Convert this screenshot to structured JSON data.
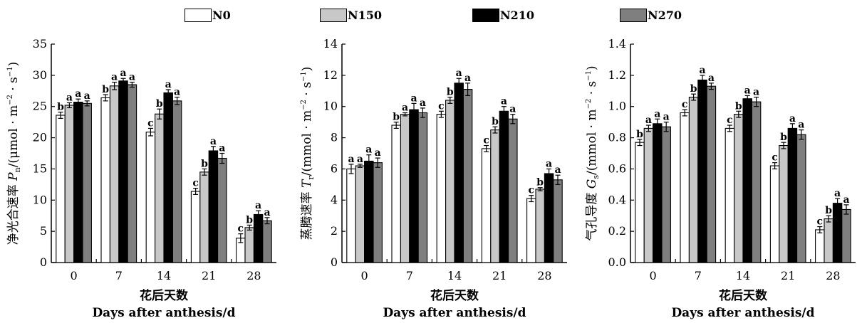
{
  "legend": [
    {
      "name": "N0",
      "color": "#ffffff"
    },
    {
      "name": "N150",
      "color": "#c8c8c8"
    },
    {
      "name": "N210",
      "color": "#000000"
    },
    {
      "name": "N270",
      "color": "#7f7f7f"
    }
  ],
  "chart_data": [
    {
      "type": "bar",
      "categories": [
        "0",
        "7",
        "14",
        "21",
        "28"
      ],
      "xlabel_cn": "花后天数",
      "xlabel_en": "Days after anthesis/d",
      "ylabel_cn": "净光合速率",
      "ylabel_var": "P",
      "ylabel_sub": "n",
      "ylabel_unit": "/(μmol · m",
      "ylabel_tail": " · s",
      "ylim": [
        0,
        35
      ],
      "yticks": [
        "0",
        "5",
        "10",
        "15",
        "20",
        "25",
        "30",
        "35"
      ],
      "series": [
        {
          "name": "N0",
          "values": [
            23.6,
            26.4,
            20.9,
            11.4,
            3.9
          ],
          "errors": [
            0.5,
            0.5,
            0.6,
            0.5,
            0.7
          ],
          "letters": [
            "b",
            "b",
            "c",
            "c",
            "c"
          ]
        },
        {
          "name": "N150",
          "values": [
            25.2,
            28.3,
            23.8,
            14.5,
            5.6
          ],
          "errors": [
            0.4,
            0.6,
            0.8,
            0.5,
            0.4
          ],
          "letters": [
            "a",
            "a",
            "b",
            "b",
            "b"
          ]
        },
        {
          "name": "N210",
          "values": [
            25.7,
            29.1,
            27.2,
            17.9,
            7.7
          ],
          "errors": [
            0.5,
            0.4,
            0.5,
            0.7,
            0.6
          ],
          "letters": [
            "a",
            "a",
            "a",
            "a",
            "a"
          ]
        },
        {
          "name": "N270",
          "values": [
            25.5,
            28.5,
            25.9,
            16.7,
            6.7
          ],
          "errors": [
            0.4,
            0.4,
            0.6,
            0.8,
            0.5
          ],
          "letters": [
            "a",
            "a",
            "a",
            "a",
            "a"
          ]
        }
      ]
    },
    {
      "type": "bar",
      "categories": [
        "0",
        "7",
        "14",
        "21",
        "28"
      ],
      "xlabel_cn": "花后天数",
      "xlabel_en": "Days after anthesis/d",
      "ylabel_cn": "蒸腾速率",
      "ylabel_var": "T",
      "ylabel_sub": "r",
      "ylabel_unit": "/(mmol · m",
      "ylabel_tail": " · s",
      "ylim": [
        0,
        14
      ],
      "yticks": [
        "0",
        "2",
        "4",
        "6",
        "8",
        "10",
        "12",
        "14"
      ],
      "series": [
        {
          "name": "N0",
          "values": [
            6.0,
            8.8,
            9.5,
            7.3,
            4.1
          ],
          "errors": [
            0.3,
            0.2,
            0.2,
            0.2,
            0.2
          ],
          "letters": [
            "a",
            "b",
            "c",
            "c",
            "c"
          ]
        },
        {
          "name": "N150",
          "values": [
            6.2,
            9.5,
            10.4,
            8.5,
            4.7
          ],
          "errors": [
            0.1,
            0.1,
            0.2,
            0.2,
            0.1
          ],
          "letters": [
            "a",
            "a",
            "b",
            "b",
            "b"
          ]
        },
        {
          "name": "N210",
          "values": [
            6.5,
            9.8,
            11.5,
            9.7,
            5.7
          ],
          "errors": [
            0.4,
            0.4,
            0.3,
            0.3,
            0.3
          ],
          "letters": [
            "a",
            "a",
            "a",
            "a",
            "a"
          ]
        },
        {
          "name": "N270",
          "values": [
            6.4,
            9.6,
            11.1,
            9.2,
            5.3
          ],
          "errors": [
            0.3,
            0.3,
            0.4,
            0.3,
            0.3
          ],
          "letters": [
            "a",
            "a",
            "a",
            "a",
            "a"
          ]
        }
      ]
    },
    {
      "type": "bar",
      "categories": [
        "0",
        "7",
        "14",
        "21",
        "28"
      ],
      "xlabel_cn": "花后天数",
      "xlabel_en": "Days after anthesis/d",
      "ylabel_cn": "气孔导度",
      "ylabel_var": "G",
      "ylabel_sub": "s",
      "ylabel_unit": "/(mmol · m",
      "ylabel_tail": " · s",
      "ylim": [
        0,
        1.4
      ],
      "yticks": [
        "0.0",
        "0.2",
        "0.4",
        "0.6",
        "0.8",
        "1.0",
        "1.2",
        "1.4"
      ],
      "series": [
        {
          "name": "N0",
          "values": [
            0.77,
            0.96,
            0.86,
            0.62,
            0.21
          ],
          "errors": [
            0.02,
            0.02,
            0.02,
            0.02,
            0.02
          ],
          "letters": [
            "b",
            "c",
            "c",
            "c",
            "c"
          ]
        },
        {
          "name": "N150",
          "values": [
            0.86,
            1.06,
            0.95,
            0.75,
            0.28
          ],
          "errors": [
            0.02,
            0.02,
            0.02,
            0.02,
            0.02
          ],
          "letters": [
            "a",
            "b",
            "b",
            "b",
            "b"
          ]
        },
        {
          "name": "N210",
          "values": [
            0.89,
            1.17,
            1.05,
            0.86,
            0.38
          ],
          "errors": [
            0.03,
            0.03,
            0.02,
            0.03,
            0.03
          ],
          "letters": [
            "a",
            "a",
            "a",
            "a",
            "a"
          ]
        },
        {
          "name": "N270",
          "values": [
            0.87,
            1.13,
            1.03,
            0.82,
            0.34
          ],
          "errors": [
            0.03,
            0.02,
            0.03,
            0.03,
            0.03
          ],
          "letters": [
            "a",
            "a",
            "a",
            "a",
            "a"
          ]
        }
      ]
    }
  ]
}
